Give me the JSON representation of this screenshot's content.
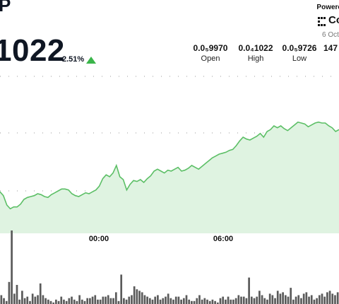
{
  "header": {
    "ticker_fragment": "P",
    "price": "1022",
    "change": "2.51%",
    "change_direction": "up",
    "up_color": "#3ab54a"
  },
  "stats": [
    {
      "value": "0.0₅9970",
      "label": "Open"
    },
    {
      "value": "0.0₄1022",
      "label": "High"
    },
    {
      "value": "0.0₅9726",
      "label": "Low"
    },
    {
      "value": "147",
      "label": ""
    }
  ],
  "branding": {
    "powered_by": "Powere",
    "logo_text": "Co",
    "date": "6 Oct"
  },
  "chart_data": {
    "type": "area",
    "x_ticks": [
      "00:00",
      "06:00"
    ],
    "line_color": "#5cbf66",
    "fill_color": "#dff3e1",
    "grid": "dotted-horizontal",
    "price_series": [
      60,
      56,
      46,
      42,
      44,
      44,
      47,
      52,
      54,
      55,
      56,
      58,
      57,
      55,
      54,
      57,
      59,
      61,
      63,
      63,
      62,
      58,
      56,
      55,
      57,
      59,
      58,
      60,
      62,
      66,
      74,
      78,
      76,
      80,
      88,
      76,
      73,
      62,
      68,
      72,
      71,
      73,
      70,
      74,
      77,
      82,
      84,
      82,
      80,
      83,
      82,
      84,
      86,
      82,
      83,
      85,
      88,
      86,
      84,
      87,
      90,
      93,
      96,
      98,
      100,
      101,
      102,
      104,
      105,
      109,
      114,
      118,
      116,
      115,
      117,
      119,
      122,
      118,
      124,
      126,
      130,
      128,
      130,
      127,
      125,
      128,
      131,
      134,
      133,
      132,
      129,
      131,
      133,
      134,
      133,
      133,
      130,
      128,
      124,
      126
    ],
    "volume_series": [
      12,
      8,
      4,
      30,
      100,
      14,
      26,
      6,
      18,
      8,
      10,
      4,
      14,
      10,
      12,
      28,
      12,
      8,
      6,
      4,
      2,
      6,
      4,
      10,
      6,
      4,
      8,
      10,
      6,
      4,
      12,
      6,
      4,
      8,
      8,
      10,
      12,
      6,
      6,
      10,
      10,
      12,
      8,
      8,
      16,
      4,
      40,
      8,
      6,
      10,
      12,
      24,
      20,
      18,
      16,
      12,
      10,
      8,
      6,
      10,
      12,
      6,
      8,
      10,
      14,
      8,
      6,
      10,
      10,
      6,
      8,
      12,
      6,
      4,
      4,
      8,
      12,
      6,
      8,
      6,
      4,
      6,
      4,
      2,
      8,
      10,
      6,
      10,
      6,
      6,
      8,
      12,
      10,
      10,
      8,
      36,
      10,
      8,
      10,
      18,
      12,
      8,
      6,
      14,
      12,
      8,
      18,
      14,
      16,
      12,
      10,
      22,
      6,
      10,
      12,
      8,
      14,
      16,
      10,
      12,
      6,
      8,
      12,
      14,
      10,
      16,
      18,
      14,
      12,
      16
    ]
  }
}
